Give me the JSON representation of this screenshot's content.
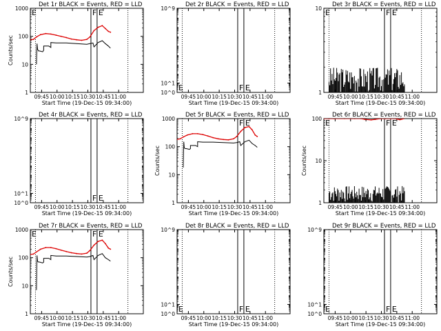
{
  "figure": {
    "x_axis_label": "Start Time (19-Dec-15 09:34:00)",
    "y_axis_label": "Counts/sec",
    "series_colors": {
      "events": "#000000",
      "lld": "#dd0000"
    },
    "time_range_min": [
      0,
      110
    ],
    "x_ticks": [
      {
        "t": 11,
        "label": "09:45"
      },
      {
        "t": 26,
        "label": "10:00"
      },
      {
        "t": 41,
        "label": "10:15"
      },
      {
        "t": 56,
        "label": "10:30"
      },
      {
        "t": 71,
        "label": "10:45"
      },
      {
        "t": 86,
        "label": "11:00"
      }
    ]
  },
  "chart_data": [
    {
      "type": "line",
      "title": "Det 1r BLACK = Events, RED = LLD",
      "xlabel": "Start Time (19-Dec-15 09:34:00)",
      "ylabel": "Counts/sec",
      "yscale": "log",
      "ylim": [
        1,
        1000
      ],
      "y_ticks": [
        {
          "v": 1,
          "label": "1"
        },
        {
          "v": 10,
          "label": "10"
        },
        {
          "v": 100,
          "label": "100"
        },
        {
          "v": 1000,
          "label": "1000"
        }
      ],
      "markers": [
        {
          "t": 5,
          "kind": "dotted"
        },
        {
          "t": 59,
          "kind": "solid",
          "label": "F"
        },
        {
          "t": 65,
          "kind": "solid",
          "label": "E"
        },
        {
          "t": 95,
          "kind": "dotted"
        }
      ],
      "flags": [
        {
          "text": "E",
          "t": 0,
          "pos": "top"
        },
        {
          "text": "F",
          "t": 59,
          "pos": "top"
        },
        {
          "text": "E",
          "t": 65,
          "pos": "top"
        }
      ],
      "series": [
        {
          "name": "LLD",
          "color": "#dd0000",
          "style": "line",
          "x": [
            0,
            3,
            6,
            10,
            15,
            20,
            25,
            30,
            35,
            40,
            45,
            50,
            55,
            58,
            62,
            66,
            70,
            73,
            76,
            78
          ],
          "y": [
            75,
            78,
            95,
            115,
            125,
            120,
            110,
            100,
            90,
            80,
            75,
            72,
            78,
            95,
            160,
            210,
            240,
            190,
            150,
            140
          ]
        },
        {
          "name": "Events",
          "color": "#000000",
          "style": "line",
          "x": [
            6,
            6.5,
            7,
            8,
            9,
            12,
            13,
            13,
            18,
            20,
            20,
            25,
            35,
            45,
            55,
            58,
            61,
            62,
            66,
            70,
            73,
            76,
            78
          ],
          "y": [
            10,
            55,
            35,
            30,
            30,
            28,
            32,
            45,
            45,
            40,
            60,
            58,
            58,
            55,
            52,
            55,
            58,
            42,
            60,
            70,
            55,
            45,
            38
          ]
        }
      ]
    },
    {
      "type": "line",
      "title": "Det 2r BLACK = Events, RED = LLD",
      "xlabel": "Start Time (19-Dec-15 09:34:00)",
      "ylabel": "",
      "yscale": "log",
      "ylim": [
        1,
        1000000000
      ],
      "y_ticks": [
        {
          "v": 1,
          "label": "10^0"
        },
        {
          "v": 10,
          "label": "10^1"
        },
        {
          "v": 1000000000,
          "label": "10^9"
        }
      ],
      "markers": [
        {
          "t": 5,
          "kind": "dotted"
        },
        {
          "t": 59,
          "kind": "solid",
          "label": "F"
        },
        {
          "t": 65,
          "kind": "solid",
          "label": "E"
        },
        {
          "t": 95,
          "kind": "dotted"
        }
      ],
      "flags": [
        {
          "text": "E",
          "t": 0,
          "pos": "bottom"
        },
        {
          "text": "F",
          "t": 59,
          "pos": "bottom"
        },
        {
          "text": "E",
          "t": 65,
          "pos": "bottom"
        }
      ],
      "series": []
    },
    {
      "type": "line",
      "title": "Det 3r BLACK = Events, RED = LLD",
      "xlabel": "Start Time (19-Dec-15 09:34:00)",
      "ylabel": "",
      "yscale": "log",
      "ylim": [
        1,
        10
      ],
      "y_ticks": [
        {
          "v": 1,
          "label": "1"
        },
        {
          "v": 10,
          "label": "10"
        }
      ],
      "markers": [
        {
          "t": 5,
          "kind": "dotted"
        },
        {
          "t": 59,
          "kind": "solid",
          "label": "F"
        },
        {
          "t": 65,
          "kind": "solid",
          "label": "E"
        },
        {
          "t": 95,
          "kind": "dotted"
        }
      ],
      "flags": [
        {
          "text": "E",
          "t": 0,
          "pos": "top"
        },
        {
          "text": "F",
          "t": 59,
          "pos": "top"
        },
        {
          "text": "E",
          "t": 65,
          "pos": "top"
        }
      ],
      "series": [
        {
          "name": "Events",
          "color": "#000000",
          "style": "spikes",
          "x_range": [
            5,
            79
          ],
          "step": 0.75,
          "low": 1,
          "high": 2,
          "seed": 3
        }
      ]
    },
    {
      "type": "line",
      "title": "Det 4r BLACK = Events, RED = LLD",
      "xlabel": "Start Time (19-Dec-15 09:34:00)",
      "ylabel": "",
      "yscale": "log",
      "ylim": [
        1,
        1000000000
      ],
      "y_ticks": [
        {
          "v": 1,
          "label": "10^0"
        },
        {
          "v": 10,
          "label": "10^1"
        },
        {
          "v": 1000000000,
          "label": "10^9"
        }
      ],
      "markers": [
        {
          "t": 5,
          "kind": "dotted"
        },
        {
          "t": 59,
          "kind": "solid",
          "label": "F"
        },
        {
          "t": 65,
          "kind": "solid",
          "label": "E"
        },
        {
          "t": 95,
          "kind": "dotted"
        }
      ],
      "flags": [
        {
          "text": "F",
          "t": 59,
          "pos": "bottom"
        },
        {
          "text": "E",
          "t": 65,
          "pos": "bottom"
        }
      ],
      "series": []
    },
    {
      "type": "line",
      "title": "Det 5r BLACK = Events, RED = LLD",
      "xlabel": "Start Time (19-Dec-15 09:34:00)",
      "ylabel": "Counts/sec",
      "yscale": "log",
      "ylim": [
        1,
        1000
      ],
      "y_ticks": [
        {
          "v": 1,
          "label": "1"
        },
        {
          "v": 10,
          "label": "10"
        },
        {
          "v": 100,
          "label": "100"
        },
        {
          "v": 1000,
          "label": "1000"
        }
      ],
      "markers": [
        {
          "t": 5,
          "kind": "dotted"
        },
        {
          "t": 59,
          "kind": "solid",
          "label": "F"
        },
        {
          "t": 65,
          "kind": "solid",
          "label": "E"
        },
        {
          "t": 95,
          "kind": "dotted"
        }
      ],
      "flags": [
        {
          "text": "F",
          "t": 59,
          "pos": "top"
        },
        {
          "text": "E",
          "t": 65,
          "pos": "top"
        }
      ],
      "series": [
        {
          "name": "LLD",
          "color": "#dd0000",
          "style": "line",
          "x": [
            0,
            3,
            6,
            10,
            15,
            20,
            25,
            30,
            35,
            40,
            45,
            50,
            55,
            58,
            62,
            66,
            70,
            73,
            76,
            78
          ],
          "y": [
            180,
            190,
            220,
            260,
            290,
            290,
            270,
            240,
            210,
            190,
            180,
            175,
            190,
            230,
            350,
            480,
            520,
            400,
            260,
            230
          ]
        },
        {
          "name": "Events",
          "color": "#000000",
          "style": "line",
          "x": [
            6,
            6.5,
            7,
            8,
            9,
            12,
            13,
            13,
            18,
            20,
            20,
            25,
            35,
            45,
            55,
            58,
            61,
            62,
            66,
            70,
            73,
            76,
            78
          ],
          "y": [
            18,
            150,
            90,
            85,
            85,
            80,
            85,
            110,
            110,
            100,
            150,
            145,
            145,
            140,
            135,
            140,
            150,
            110,
            150,
            170,
            130,
            110,
            95
          ]
        }
      ]
    },
    {
      "type": "line",
      "title": "Det 6r BLACK = Events, RED = LLD",
      "xlabel": "Start Time (19-Dec-15 09:34:00)",
      "ylabel": "Counts/sec",
      "yscale": "log",
      "ylim": [
        1,
        100
      ],
      "y_ticks": [
        {
          "v": 1,
          "label": "1"
        },
        {
          "v": 10,
          "label": "10"
        },
        {
          "v": 100,
          "label": "100"
        }
      ],
      "markers": [
        {
          "t": 5,
          "kind": "dotted"
        },
        {
          "t": 59,
          "kind": "solid",
          "label": "F"
        },
        {
          "t": 65,
          "kind": "solid",
          "label": "E"
        },
        {
          "t": 95,
          "kind": "dotted"
        }
      ],
      "flags": [
        {
          "text": "E",
          "t": 0,
          "pos": "top"
        },
        {
          "text": "F",
          "t": 59,
          "pos": "top"
        },
        {
          "text": "E",
          "t": 65,
          "pos": "top"
        }
      ],
      "series": [
        {
          "name": "LLD",
          "color": "#dd0000",
          "style": "line",
          "x": [
            0,
            5,
            10,
            20,
            30,
            36,
            40,
            46,
            50,
            55,
            60,
            65,
            70,
            72,
            74,
            76,
            78
          ],
          "y": [
            100,
            100,
            100,
            100,
            100,
            100,
            96,
            93,
            96,
            100,
            100,
            100,
            100,
            97,
            94,
            97,
            100
          ]
        },
        {
          "name": "Events",
          "color": "#000000",
          "style": "spikes",
          "x_range": [
            5,
            79
          ],
          "step": 0.75,
          "low": 1,
          "high": 2.5,
          "seed": 7
        }
      ]
    },
    {
      "type": "line",
      "title": "Det 7r BLACK = Events, RED = LLD",
      "xlabel": "Start Time (19-Dec-15 09:34:00)",
      "ylabel": "Counts/sec",
      "yscale": "log",
      "ylim": [
        1,
        1000
      ],
      "y_ticks": [
        {
          "v": 1,
          "label": "1"
        },
        {
          "v": 10,
          "label": "10"
        },
        {
          "v": 100,
          "label": "100"
        },
        {
          "v": 1000,
          "label": "1000"
        }
      ],
      "markers": [
        {
          "t": 5,
          "kind": "dotted"
        },
        {
          "t": 59,
          "kind": "solid",
          "label": "F"
        },
        {
          "t": 65,
          "kind": "solid",
          "label": "E"
        },
        {
          "t": 95,
          "kind": "dotted"
        }
      ],
      "flags": [
        {
          "text": "E",
          "t": 0,
          "pos": "top"
        },
        {
          "text": "F",
          "t": 59,
          "pos": "top"
        },
        {
          "text": "E",
          "t": 65,
          "pos": "top"
        }
      ],
      "series": [
        {
          "name": "LLD",
          "color": "#dd0000",
          "style": "line",
          "x": [
            0,
            3,
            6,
            10,
            15,
            20,
            25,
            30,
            35,
            40,
            45,
            50,
            55,
            58,
            62,
            66,
            70,
            73,
            76,
            78
          ],
          "y": [
            130,
            135,
            160,
            200,
            230,
            230,
            210,
            185,
            165,
            150,
            140,
            135,
            145,
            180,
            280,
            380,
            420,
            320,
            220,
            200
          ]
        },
        {
          "name": "Events",
          "color": "#000000",
          "style": "line",
          "x": [
            6,
            6.5,
            7,
            8,
            9,
            12,
            13,
            13,
            18,
            20,
            20,
            25,
            35,
            45,
            55,
            58,
            61,
            62,
            66,
            70,
            73,
            76,
            78
          ],
          "y": [
            7,
            120,
            75,
            70,
            70,
            65,
            70,
            95,
            95,
            85,
            120,
            115,
            115,
            110,
            105,
            110,
            120,
            85,
            120,
            140,
            100,
            85,
            75
          ]
        }
      ]
    },
    {
      "type": "line",
      "title": "Det 8r BLACK = Events, RED = LLD",
      "xlabel": "Start Time (19-Dec-15 09:34:00)",
      "ylabel": "",
      "yscale": "log",
      "ylim": [
        1,
        1000000000
      ],
      "y_ticks": [
        {
          "v": 1,
          "label": "10^0"
        },
        {
          "v": 10,
          "label": "10^1"
        },
        {
          "v": 1000000000,
          "label": "10^9"
        }
      ],
      "markers": [
        {
          "t": 5,
          "kind": "dotted"
        },
        {
          "t": 59,
          "kind": "solid",
          "label": "F"
        },
        {
          "t": 65,
          "kind": "solid",
          "label": "E"
        },
        {
          "t": 95,
          "kind": "dotted"
        }
      ],
      "flags": [
        {
          "text": "E",
          "t": 0,
          "pos": "bottom"
        },
        {
          "text": "F",
          "t": 59,
          "pos": "bottom"
        },
        {
          "text": "E",
          "t": 65,
          "pos": "bottom"
        }
      ],
      "series": []
    },
    {
      "type": "line",
      "title": "Det 9r BLACK = Events, RED = LLD",
      "xlabel": "Start Time (19-Dec-15 09:34:00)",
      "ylabel": "",
      "yscale": "log",
      "ylim": [
        1,
        1000000000
      ],
      "y_ticks": [
        {
          "v": 1,
          "label": "10^0"
        },
        {
          "v": 10,
          "label": "10^1"
        },
        {
          "v": 1000000000,
          "label": "10^9"
        }
      ],
      "markers": [
        {
          "t": 5,
          "kind": "dotted"
        },
        {
          "t": 59,
          "kind": "solid",
          "label": "F"
        },
        {
          "t": 65,
          "kind": "solid",
          "label": "E"
        },
        {
          "t": 95,
          "kind": "dotted"
        }
      ],
      "flags": [
        {
          "text": "E",
          "t": 0,
          "pos": "bottom"
        },
        {
          "text": "F",
          "t": 59,
          "pos": "bottom"
        },
        {
          "text": "E",
          "t": 65,
          "pos": "bottom"
        }
      ],
      "series": []
    }
  ]
}
